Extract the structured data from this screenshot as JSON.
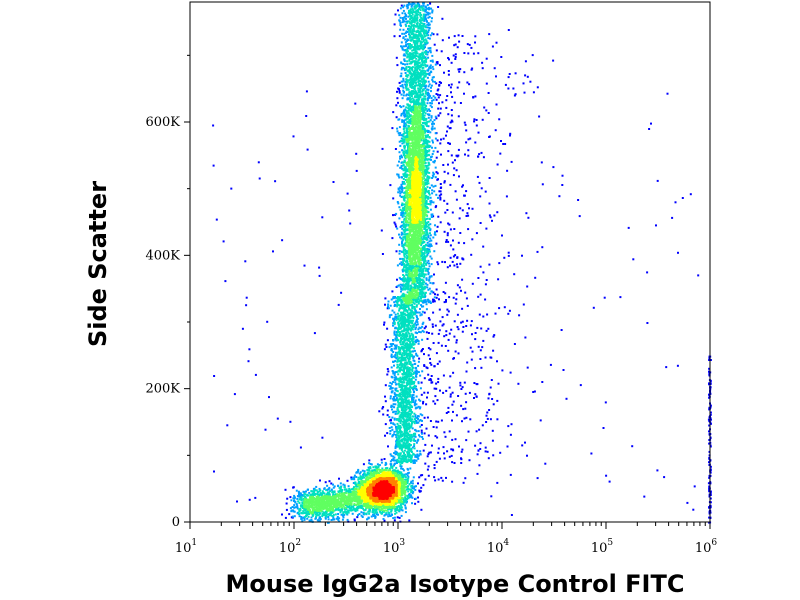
{
  "chart_data": {
    "type": "scatter",
    "subtype": "flow cytometry density dot plot",
    "xlabel": "Mouse IgG2a Isotype Control FITC",
    "ylabel": "Side Scatter",
    "x_scale": "log",
    "xlim": [
      10,
      1000000
    ],
    "ylim": [
      0,
      780000
    ],
    "x_ticks": [
      {
        "base": "10",
        "exp": "1",
        "value": 10
      },
      {
        "base": "10",
        "exp": "2",
        "value": 100
      },
      {
        "base": "10",
        "exp": "3",
        "value": 1000
      },
      {
        "base": "10",
        "exp": "4",
        "value": 10000
      },
      {
        "base": "10",
        "exp": "5",
        "value": 100000
      },
      {
        "base": "10",
        "exp": "6",
        "value": 1000000
      }
    ],
    "y_ticks": [
      {
        "label": "0",
        "value": 0
      },
      {
        "label": "200K",
        "value": 200000
      },
      {
        "label": "400K",
        "value": 400000
      },
      {
        "label": "600K",
        "value": 600000
      }
    ],
    "density_colors": [
      "#0000ff",
      "#00a0ff",
      "#00e0c0",
      "#60ff60",
      "#ffff00",
      "#ff8000",
      "#ff0000"
    ],
    "clusters": [
      {
        "name": "low cluster",
        "x_center": 700,
        "y_center": 50000,
        "peak_density": "highest"
      },
      {
        "name": "tail",
        "x_from": 150,
        "x_to": 1000,
        "y_from": 15000,
        "y_to": 80000,
        "peak_density": "medium"
      },
      {
        "name": "lower column",
        "x_center": 1200,
        "y_from": 90000,
        "y_to": 330000,
        "peak_density": "medium"
      },
      {
        "name": "upper column",
        "x_center": 1500,
        "y_from": 330000,
        "y_to": 780000,
        "peak_density": "high",
        "peak_y": 480000
      },
      {
        "name": "right edge",
        "x_center": 1000000,
        "y_from": 0,
        "y_to": 250000,
        "peak_density": "low"
      }
    ],
    "grid": false,
    "legend": "none"
  }
}
